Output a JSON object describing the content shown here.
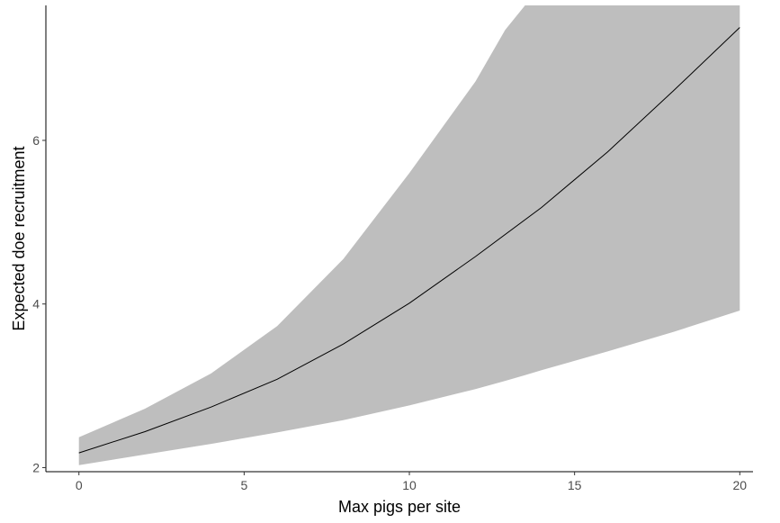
{
  "chart_data": {
    "type": "line",
    "title": "",
    "xlabel": "Max pigs per site",
    "ylabel": "Expected doe recruitment",
    "xlim": [
      -1,
      20.4
    ],
    "ylim": [
      1.95,
      7.65
    ],
    "x_ticks": [
      0,
      5,
      10,
      15,
      20
    ],
    "y_ticks": [
      2,
      4,
      6
    ],
    "grid": false,
    "legend": "none",
    "series": [
      {
        "type": "line",
        "color": "#000000",
        "x": [
          0,
          2,
          4,
          6,
          8,
          10,
          12,
          14,
          16,
          18,
          20
        ],
        "y": [
          2.18,
          2.44,
          2.74,
          3.08,
          3.51,
          4.01,
          4.58,
          5.18,
          5.86,
          6.61,
          7.38
        ]
      }
    ],
    "ribbon": {
      "color": "#bebebe",
      "x": [
        0,
        2,
        4,
        6,
        8,
        10,
        12,
        12.9,
        13.5,
        14,
        16,
        18,
        20
      ],
      "lower": [
        2.03,
        2.16,
        2.29,
        2.43,
        2.58,
        2.76,
        2.96,
        3.06,
        3.13,
        3.19,
        3.42,
        3.66,
        3.92
      ],
      "upper": [
        2.37,
        2.72,
        3.15,
        3.73,
        4.55,
        5.6,
        6.72,
        7.35,
        7.65,
        7.65,
        7.65,
        7.65,
        7.65
      ]
    }
  }
}
